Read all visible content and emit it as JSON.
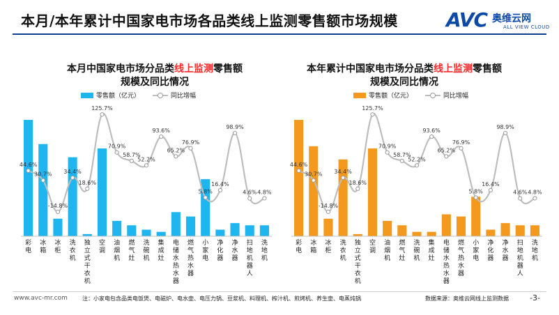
{
  "page": {
    "title": "本月/本年累计中国家电市场各品类线上监测零售额市场规模",
    "page_number": "-3-"
  },
  "logo": {
    "brand": "AVC",
    "name_cn": "奥维云网",
    "name_en": "ALL VIEW CLOUD"
  },
  "footer": {
    "url": "www.avc-mr.com",
    "note": "注：小家电包含品类电饭煲、电磁炉、电水壶、电压力锅、豆浆机、料理机、榨汁机、煎烤机、养生壶、电蒸炖锅",
    "source": "数据来源：奥维云网线上监测数据"
  },
  "colors": {
    "left_bar": "#1fb6ef",
    "right_bar": "#f39a1e",
    "line": "#bdbdbd",
    "title_rule": "#0b3e8f",
    "highlight": "#ff2a2a"
  },
  "chart_data": [
    {
      "type": "bar",
      "title_parts": [
        "本月中国家电市场分品类",
        "线上监测",
        "零售额",
        "规模及同比情况"
      ],
      "legend_bar": "零售额（亿元）",
      "legend_line": "同比增幅",
      "categories": [
        "彩电",
        "冰箱",
        "冰柜",
        "洗衣机",
        "独立式干衣机",
        "空调",
        "油烟机",
        "燃气灶",
        "洗碗机",
        "集成灶",
        "电储水热水器",
        "燃气热水器",
        "小家电",
        "净化器",
        "净水器",
        "扫地机器人",
        "洗地机"
      ],
      "series": [
        {
          "name": "零售额（亿元）",
          "kind": "bar",
          "values": [
            53,
            42,
            8,
            36,
            1,
            40,
            7,
            5,
            3,
            2,
            11,
            9,
            26,
            3,
            6,
            5,
            5
          ]
        },
        {
          "name": "同比增幅",
          "kind": "line",
          "values": [
            44.6,
            30.7,
            -14.8,
            34.4,
            18.6,
            125.7,
            70.9,
            58.7,
            52.2,
            93.6,
            65.2,
            76.9,
            5.8,
            16.4,
            98.9,
            4.6,
            4.8
          ]
        }
      ],
      "line_labels": [
        "44.6%",
        "30.7%",
        "-14.8%",
        "34.4%",
        "18.6%",
        "125.7%",
        "70.9%",
        "58.7%",
        "52.2%",
        "93.6%",
        "65.2%",
        "76.9%",
        "5.8%",
        "16.4%",
        "98.9%",
        "4.6%",
        "4.8%"
      ],
      "ylim": [
        0,
        60
      ],
      "y2lim": [
        -50,
        140
      ],
      "grid": false,
      "legend_position": "top-left"
    },
    {
      "type": "bar",
      "title_parts": [
        "本年累计中国家电市场分品类",
        "线上监测",
        "零售额",
        "规模及同比情况"
      ],
      "legend_bar": "零售额（亿元）",
      "legend_line": "同比增幅",
      "categories": [
        "彩电",
        "冰箱",
        "冰柜",
        "洗衣机",
        "独立式干衣机",
        "空调",
        "油烟机",
        "燃气灶",
        "洗碗机",
        "集成灶",
        "电储水热水器",
        "燃气热水器",
        "小家电",
        "净化器",
        "净水器",
        "扫地机器人",
        "洗地机"
      ],
      "series": [
        {
          "name": "零售额（亿元）",
          "kind": "bar",
          "values": [
            53,
            41,
            8,
            35,
            1,
            40,
            7,
            5,
            2,
            2,
            10,
            9,
            18,
            3,
            6,
            5,
            5
          ]
        },
        {
          "name": "同比增幅",
          "kind": "line",
          "values": [
            44.6,
            30.7,
            -14.8,
            34.4,
            18.6,
            125.7,
            70.9,
            58.7,
            52.2,
            93.6,
            65.2,
            76.9,
            5.8,
            16.4,
            98.9,
            4.6,
            4.8
          ]
        }
      ],
      "line_labels": [
        "44.6%",
        "30.7%",
        "-14.8%",
        "34.4%",
        "18.6%",
        "125.7%",
        "70.9%",
        "58.7%",
        "52.2%",
        "93.6%",
        "65.2%",
        "76.9%",
        "5.8%",
        "16.4%",
        "98.9%",
        "4.6%",
        "4.8%"
      ],
      "ylim": [
        0,
        60
      ],
      "y2lim": [
        -50,
        140
      ],
      "grid": false,
      "legend_position": "top-left"
    }
  ]
}
